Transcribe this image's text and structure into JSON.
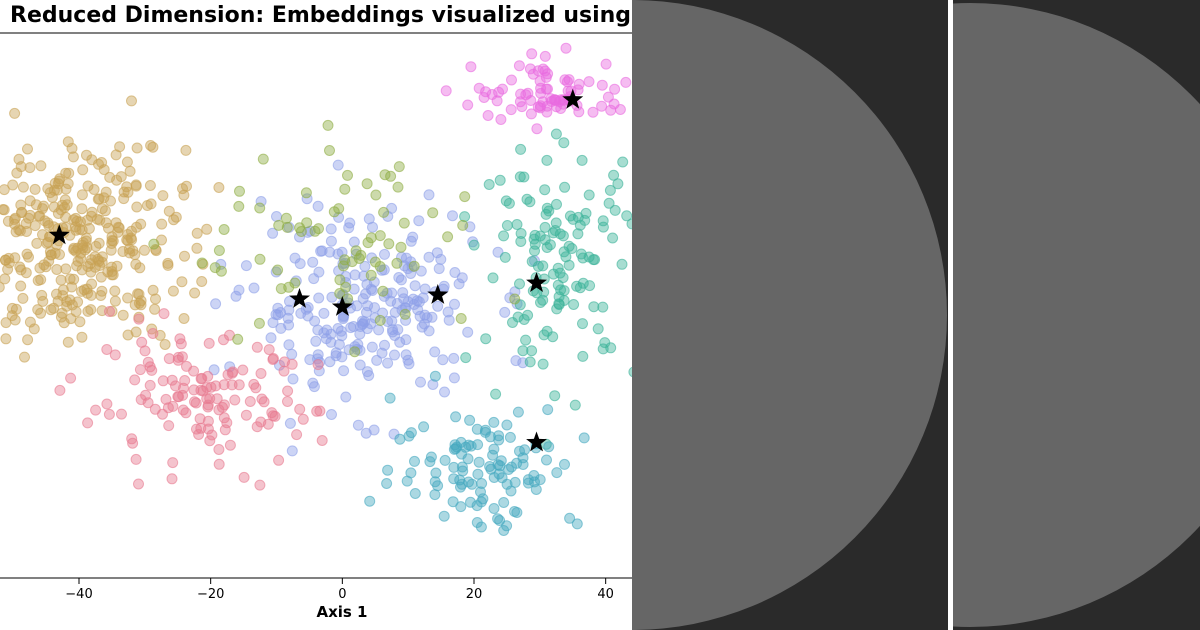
{
  "chart_data": {
    "type": "scatter",
    "title": "Reduced Dimension: Embeddings visualized using t-",
    "xlabel": "Axis 1",
    "ylabel": "",
    "xlim": [
      -52,
      44
    ],
    "ylim": [
      -34,
      34
    ],
    "xticks": [
      -40,
      -20,
      0,
      20,
      40
    ],
    "xtick_labels": [
      "−40",
      "−20",
      "0",
      "20",
      "40"
    ],
    "grid": false,
    "legend": "none",
    "series": [
      {
        "color": "#c8a254",
        "cluster": {
          "center": [
            -40,
            8
          ],
          "spread": [
            8,
            6
          ],
          "count": 330
        }
      },
      {
        "color": "#8da0e8",
        "cluster": {
          "center": [
            3,
            0
          ],
          "spread": [
            9,
            6
          ],
          "count": 240
        }
      },
      {
        "color": "#e77a90",
        "cluster": {
          "center": [
            -22,
            -12
          ],
          "spread": [
            9,
            4
          ],
          "count": 130
        }
      },
      {
        "color": "#3cb39a",
        "cluster": {
          "center": [
            33,
            6
          ],
          "spread": [
            6,
            7
          ],
          "count": 130
        }
      },
      {
        "color": "#44a9bf",
        "cluster": {
          "center": [
            22,
            -20
          ],
          "spread": [
            7,
            4
          ],
          "count": 110
        }
      },
      {
        "color": "#e96ae0",
        "cluster": {
          "center": [
            32,
            27
          ],
          "spread": [
            6,
            2
          ],
          "count": 80
        }
      },
      {
        "color": "#8fae44",
        "cluster": {
          "center": [
            0,
            7
          ],
          "spread": [
            12,
            6
          ],
          "count": 70
        }
      }
    ],
    "centroids": [
      {
        "x": -43,
        "y": 9
      },
      {
        "x": -6.5,
        "y": 1
      },
      {
        "x": 0,
        "y": 0
      },
      {
        "x": 14.5,
        "y": 1.5
      },
      {
        "x": 29.5,
        "y": 3
      },
      {
        "x": 35,
        "y": 26
      },
      {
        "x": 29.5,
        "y": -17
      }
    ]
  },
  "right_panels": [
    {
      "name": "panel-1",
      "background": "#2a2a2a",
      "shape_color": "#666666"
    },
    {
      "name": "panel-2",
      "background": "#2a2a2a",
      "shape_color": "#666666"
    }
  ]
}
